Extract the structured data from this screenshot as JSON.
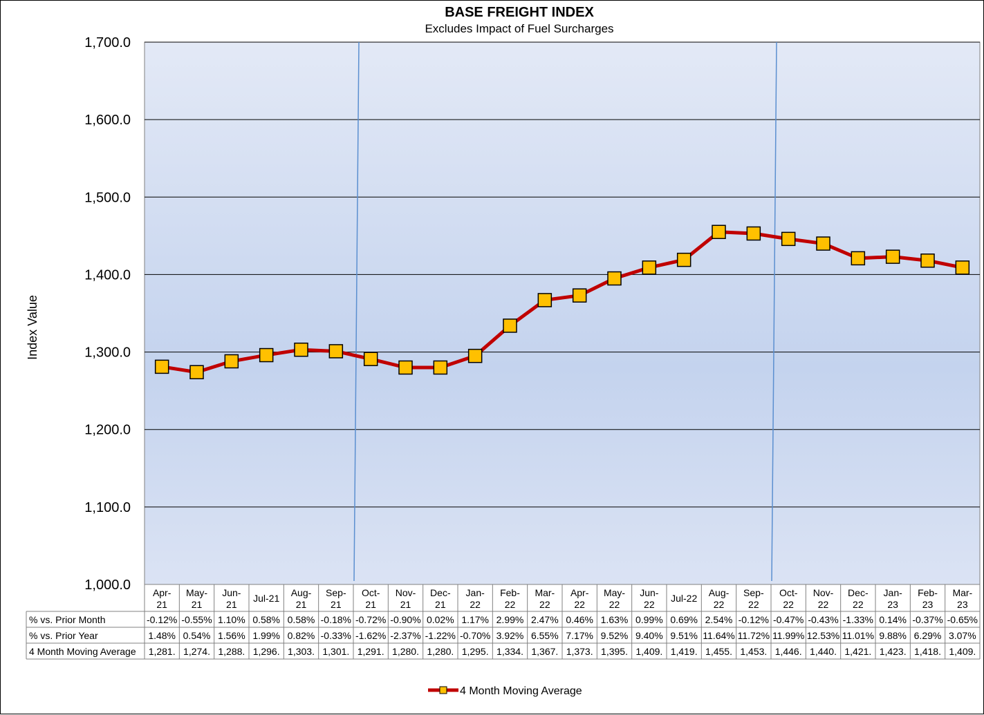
{
  "chart_data": {
    "type": "line",
    "title": "BASE FREIGHT INDEX",
    "subtitle": "Excludes Impact of Fuel Surcharges",
    "ylabel": "Index Value",
    "ylim": [
      1000,
      1700
    ],
    "yticks": [
      "1,000.0",
      "1,100.0",
      "1,200.0",
      "1,300.0",
      "1,400.0",
      "1,500.0",
      "1,600.0",
      "1,700.0"
    ],
    "grid": true,
    "legend_position": "bottom-center",
    "categories": [
      [
        "Apr-",
        "21"
      ],
      [
        "May-",
        "21"
      ],
      [
        "Jun-",
        "21"
      ],
      [
        "Jul-21"
      ],
      [
        "Aug-",
        "21"
      ],
      [
        "Sep-",
        "21"
      ],
      [
        "Oct-",
        "21"
      ],
      [
        "Nov-",
        "21"
      ],
      [
        "Dec-",
        "21"
      ],
      [
        "Jan-",
        "22"
      ],
      [
        "Feb-",
        "22"
      ],
      [
        "Mar-",
        "22"
      ],
      [
        "Apr-",
        "22"
      ],
      [
        "May-",
        "22"
      ],
      [
        "Jun-",
        "22"
      ],
      [
        "Jul-22"
      ],
      [
        "Aug-",
        "22"
      ],
      [
        "Sep-",
        "22"
      ],
      [
        "Oct-",
        "22"
      ],
      [
        "Nov-",
        "22"
      ],
      [
        "Dec-",
        "22"
      ],
      [
        "Jan-",
        "23"
      ],
      [
        "Feb-",
        "23"
      ],
      [
        "Mar-",
        "23"
      ]
    ],
    "series": [
      {
        "name": "4 Month Moving Average",
        "color": "#c00000",
        "marker_color": "#ffc000",
        "values": [
          1281,
          1274,
          1288,
          1296,
          1303,
          1301,
          1291,
          1280,
          1280,
          1295,
          1334,
          1367,
          1373,
          1395,
          1409,
          1419,
          1455,
          1453,
          1446,
          1440,
          1421,
          1423,
          1418,
          1409
        ]
      }
    ],
    "vertical_markers": [
      "Oct-21",
      "Oct-22"
    ],
    "table": {
      "rows": [
        {
          "label": "% vs. Prior Month",
          "cells": [
            "-0.12%",
            "-0.55%",
            "1.10%",
            "0.58%",
            "0.58%",
            "-0.18%",
            "-0.72%",
            "-0.90%",
            "0.02%",
            "1.17%",
            "2.99%",
            "2.47%",
            "0.46%",
            "1.63%",
            "0.99%",
            "0.69%",
            "2.54%",
            "-0.12%",
            "-0.47%",
            "-0.43%",
            "-1.33%",
            "0.14%",
            "-0.37%",
            "-0.65%"
          ]
        },
        {
          "label": "% vs. Prior Year",
          "cells": [
            "1.48%",
            "0.54%",
            "1.56%",
            "1.99%",
            "0.82%",
            "-0.33%",
            "-1.62%",
            "-2.37%",
            "-1.22%",
            "-0.70%",
            "3.92%",
            "6.55%",
            "7.17%",
            "9.52%",
            "9.40%",
            "9.51%",
            "11.64%",
            "11.72%",
            "11.99%",
            "12.53%",
            "11.01%",
            "9.88%",
            "6.29%",
            "3.07%"
          ]
        },
        {
          "label": "4 Month Moving Average",
          "cells": [
            "1,281.",
            "1,274.",
            "1,288.",
            "1,296.",
            "1,303.",
            "1,301.",
            "1,291.",
            "1,280.",
            "1,280.",
            "1,295.",
            "1,334.",
            "1,367.",
            "1,373.",
            "1,395.",
            "1,409.",
            "1,419.",
            "1,455.",
            "1,453.",
            "1,446.",
            "1,440.",
            "1,421.",
            "1,423.",
            "1,418.",
            "1,409."
          ]
        }
      ]
    },
    "colors": {
      "plot_top": "#e3e9f6",
      "plot_mid": "#c4d3ee",
      "plot_bottom": "#dbe3f4",
      "marker_line": "#5b8fd0"
    }
  }
}
